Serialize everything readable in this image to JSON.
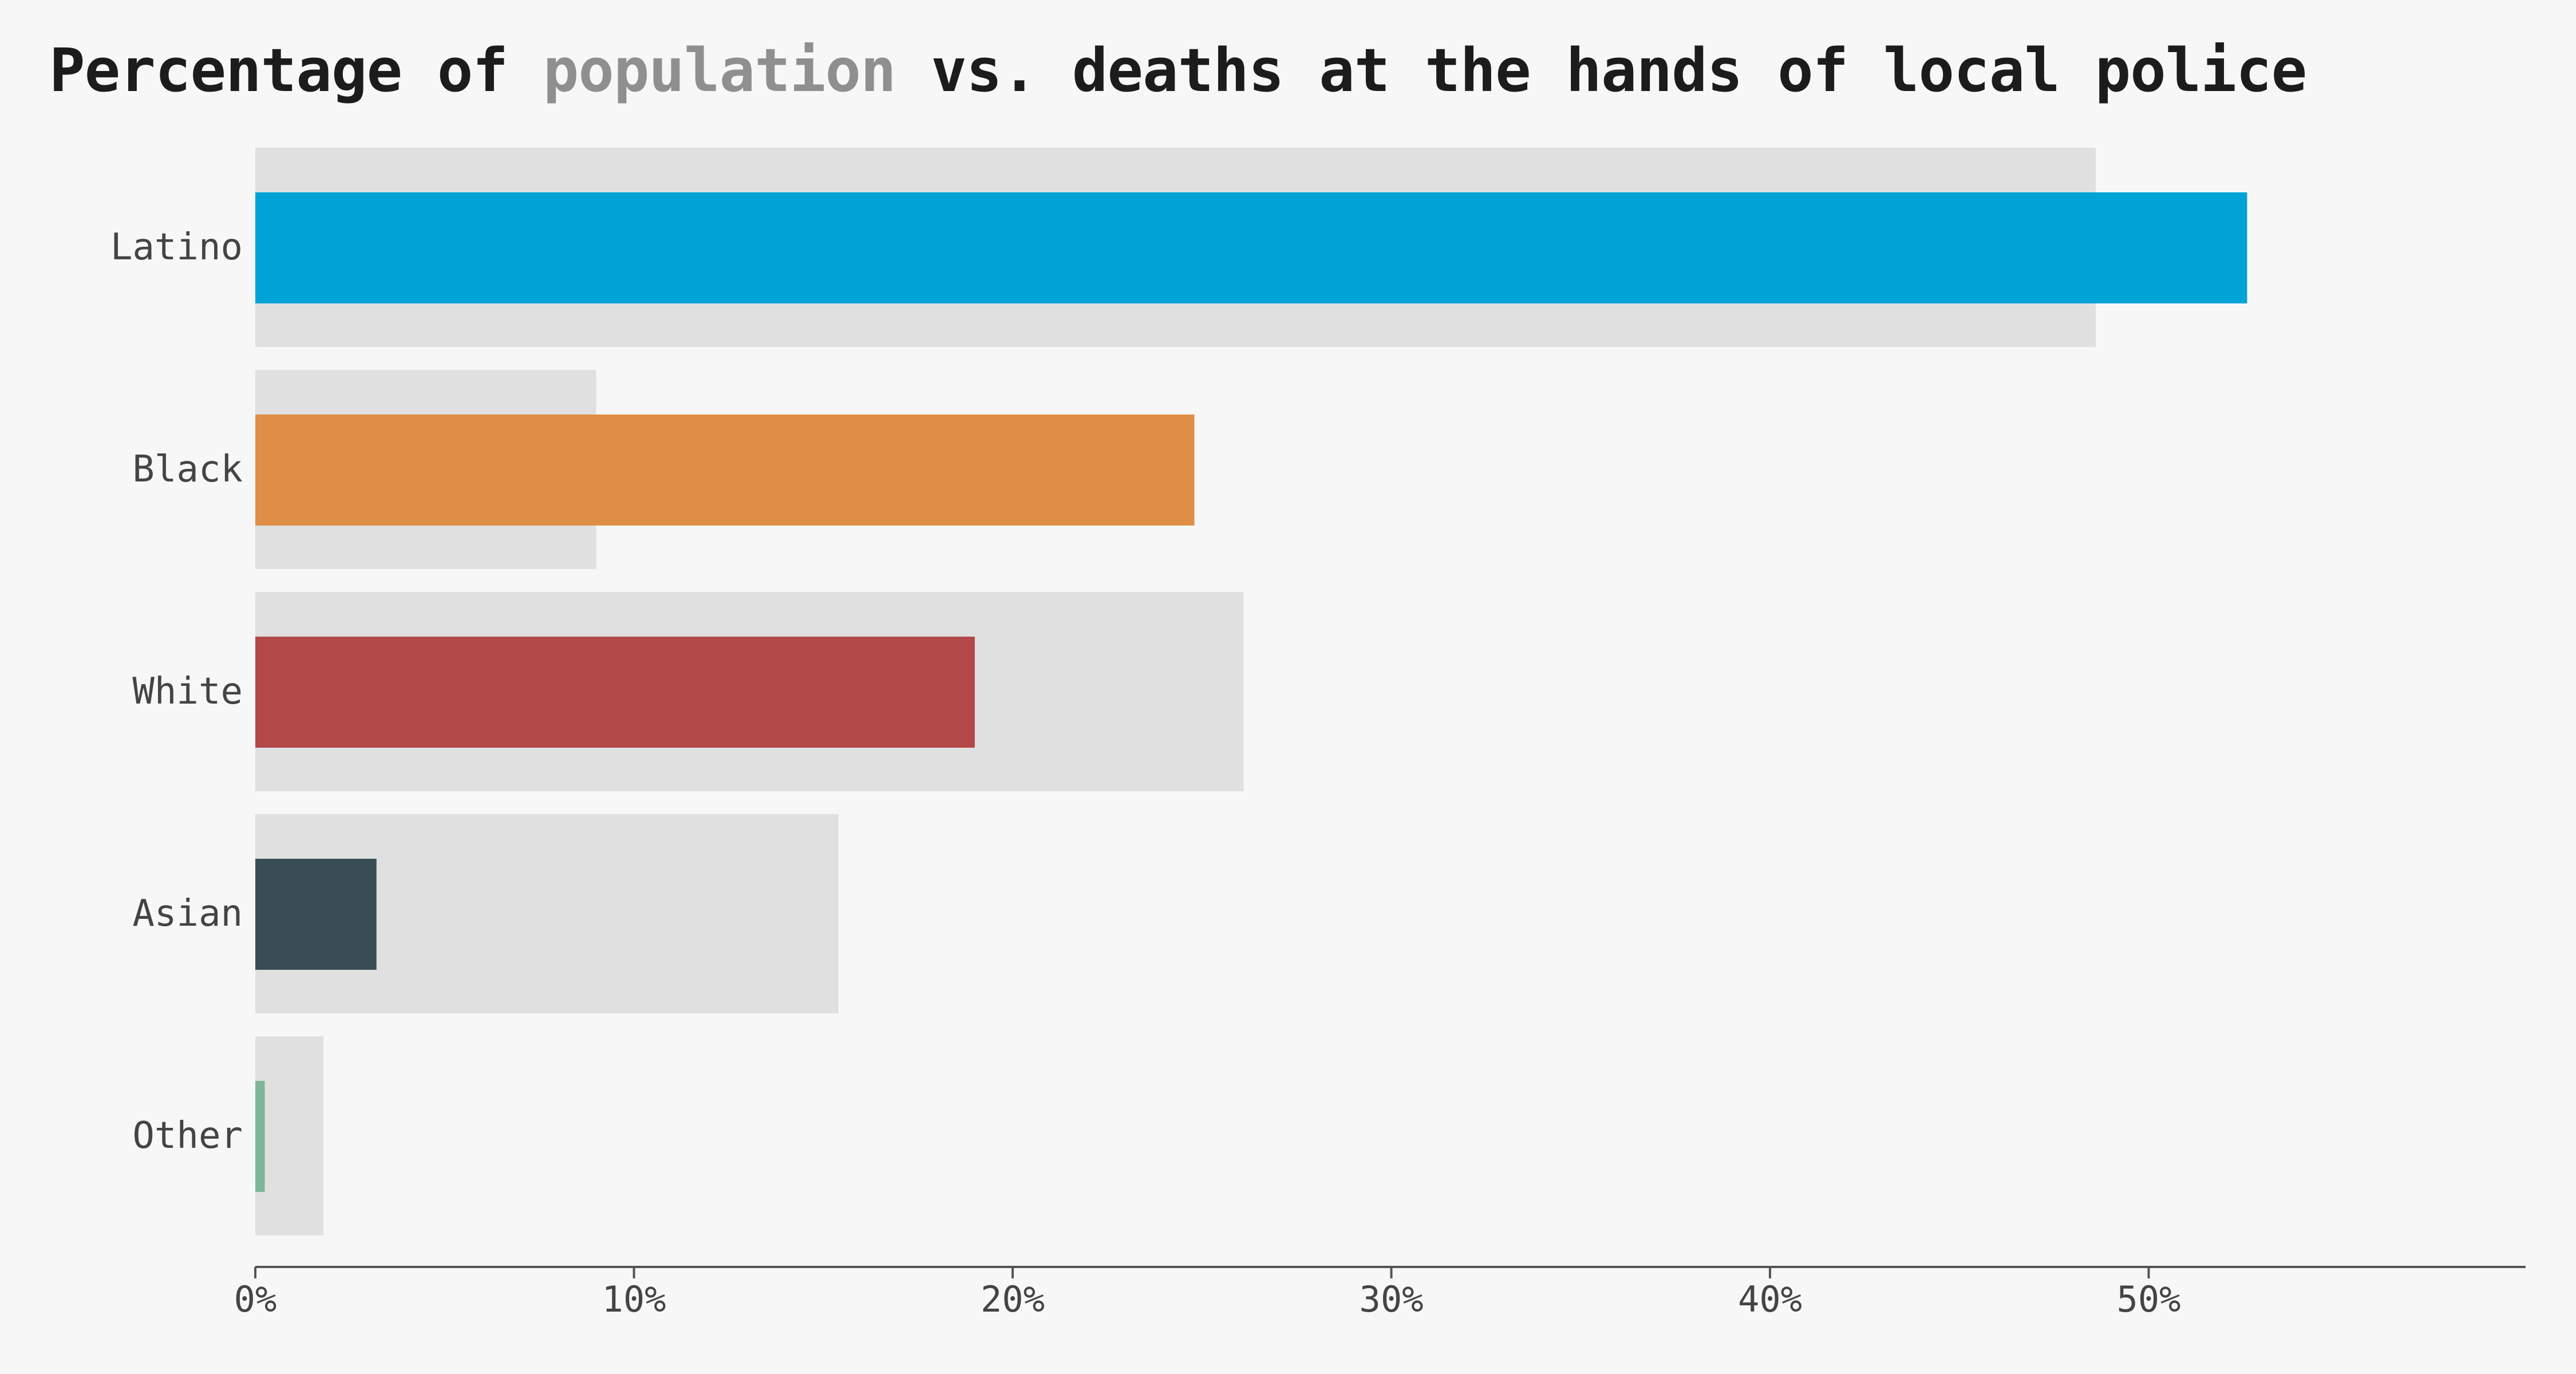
{
  "chart_data": {
    "type": "bar",
    "orientation": "horizontal",
    "title_parts": [
      {
        "text": "Percentage of ",
        "highlight": false
      },
      {
        "text": "population",
        "highlight": true
      },
      {
        "text": " vs. deaths at the hands of local police",
        "highlight": false
      }
    ],
    "categories": [
      "Latino",
      "Black",
      "White",
      "Asian",
      "Other"
    ],
    "series": [
      {
        "values": [
          48.6,
          9.0,
          26.1,
          15.4,
          1.8
        ],
        "color": "#e0e0e0"
      },
      {
        "values": [
          52.6,
          24.8,
          19.0,
          3.2,
          0.25
        ],
        "colors": [
          "#00a3d6",
          "#df8f45",
          "#b34849",
          "#394d54",
          "#7fb69a"
        ]
      }
    ],
    "xlim": [
      0,
      60
    ],
    "xticks": [
      0,
      10,
      20,
      30,
      40,
      50
    ],
    "xtick_labels": [
      "0%",
      "10%",
      "20%",
      "30%",
      "40%",
      "50%"
    ],
    "grid": false,
    "legend": "none"
  }
}
